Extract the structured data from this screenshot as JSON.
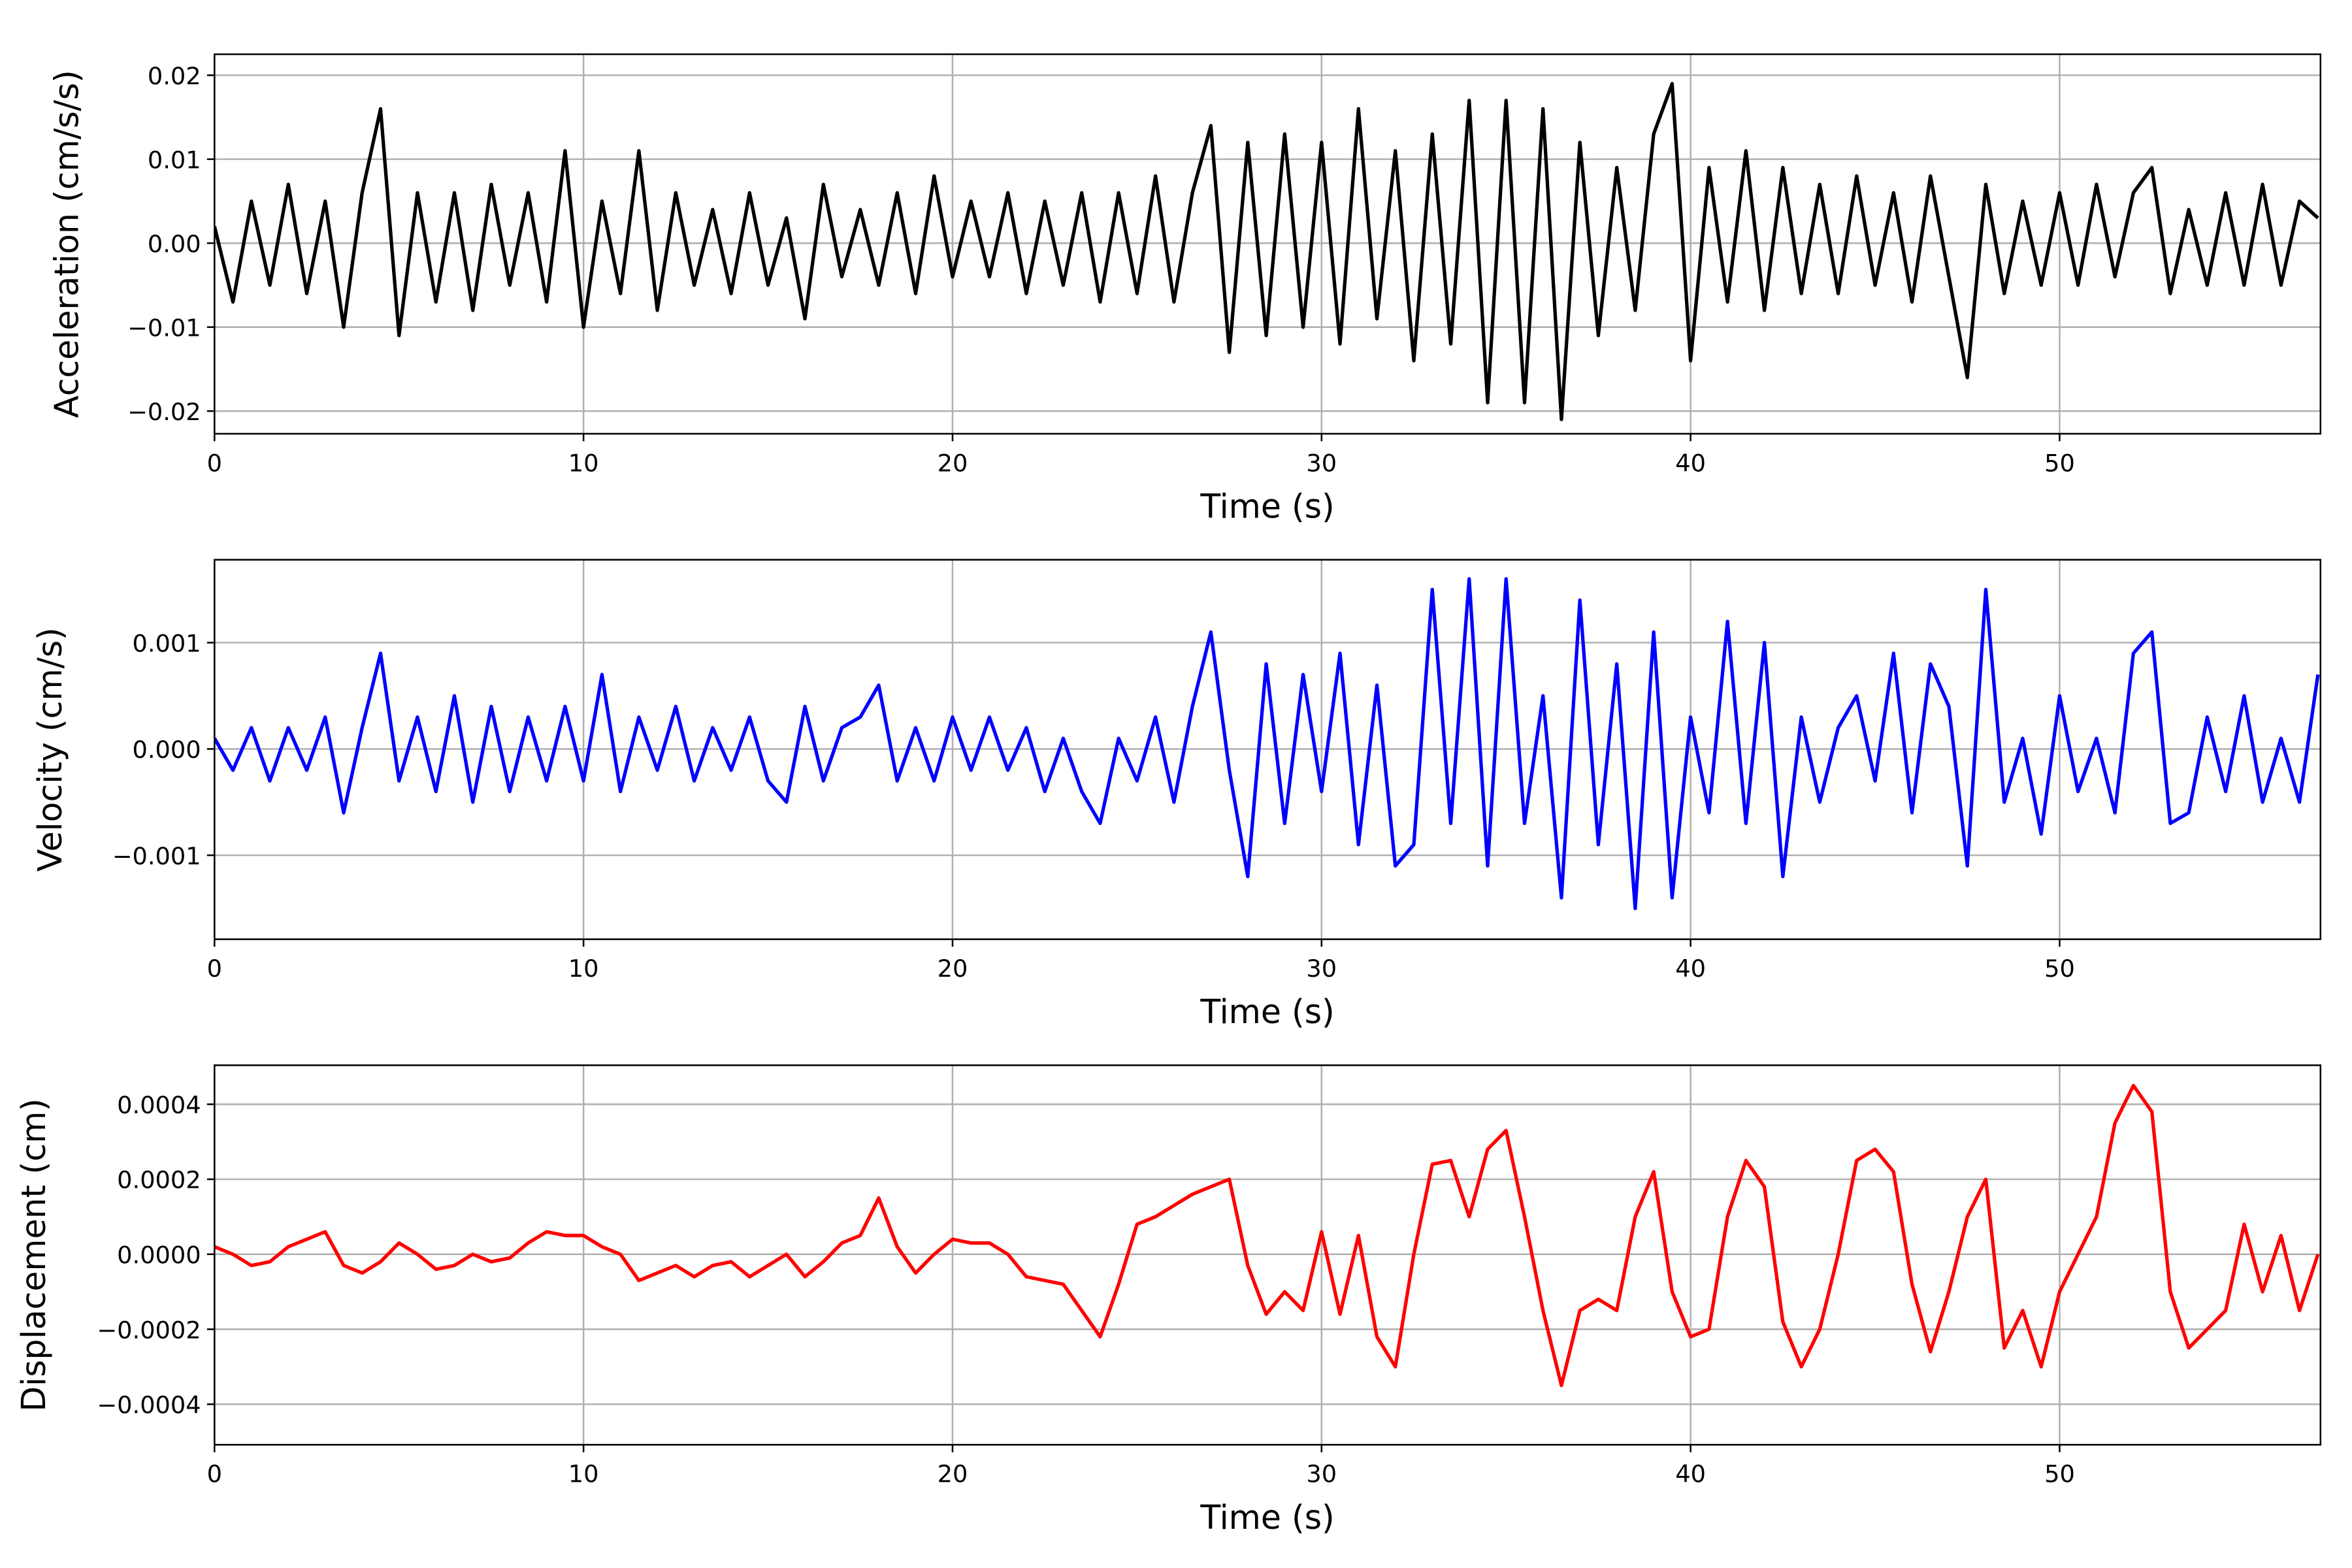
{
  "chart_data": [
    {
      "type": "line",
      "xlabel": "Time (s)",
      "ylabel": "Acceleration (cm/s/s)",
      "grid": true,
      "xlim": [
        0,
        57.07
      ],
      "xticks": [
        0,
        10,
        20,
        30,
        40,
        50
      ],
      "ylim": [
        -0.0227,
        0.0225
      ],
      "yticks": [
        {
          "value": -0.02,
          "label": "−0.02"
        },
        {
          "value": -0.01,
          "label": "−0.01"
        },
        {
          "value": 0,
          "label": "0.00"
        },
        {
          "value": 0.01,
          "label": "0.01"
        },
        {
          "value": 0.02,
          "label": "0.02"
        }
      ],
      "x": [
        0,
        0.5,
        1,
        1.5,
        2,
        2.5,
        3,
        3.5,
        4,
        4.5,
        5,
        5.5,
        6,
        6.5,
        7,
        7.5,
        8,
        8.5,
        9,
        9.5,
        10,
        10.5,
        11,
        11.5,
        12,
        12.5,
        13,
        13.5,
        14,
        14.5,
        15,
        15.5,
        16,
        16.5,
        17,
        17.5,
        18,
        18.5,
        19,
        19.5,
        20,
        20.5,
        21,
        21.5,
        22,
        22.5,
        23,
        23.5,
        24,
        24.5,
        25,
        25.5,
        26,
        26.5,
        27,
        27.5,
        28,
        28.5,
        29,
        29.5,
        30,
        30.5,
        31,
        31.5,
        32,
        32.5,
        33,
        33.5,
        34,
        34.5,
        35,
        35.5,
        36,
        36.5,
        37,
        37.5,
        38,
        38.5,
        39,
        39.5,
        40,
        40.5,
        41,
        41.5,
        42,
        42.5,
        43,
        43.5,
        44,
        44.5,
        45,
        45.5,
        46,
        46.5,
        47,
        47.5,
        48,
        48.5,
        49,
        49.5,
        50,
        50.5,
        51,
        51.5,
        52,
        52.5,
        53,
        53.5,
        54,
        54.5,
        55,
        55.5,
        56,
        56.5,
        57
      ],
      "series": [
        {
          "color": "#000000",
          "values": [
            0.002,
            -0.007,
            0.005,
            -0.005,
            0.007,
            -0.006,
            0.005,
            -0.01,
            0.006,
            0.016,
            -0.011,
            0.006,
            -0.007,
            0.006,
            -0.008,
            0.007,
            -0.005,
            0.006,
            -0.007,
            0.011,
            -0.01,
            0.005,
            -0.006,
            0.011,
            -0.008,
            0.006,
            -0.005,
            0.004,
            -0.006,
            0.006,
            -0.005,
            0.003,
            -0.009,
            0.007,
            -0.004,
            0.004,
            -0.005,
            0.006,
            -0.006,
            0.008,
            -0.004,
            0.005,
            -0.004,
            0.006,
            -0.006,
            0.005,
            -0.005,
            0.006,
            -0.007,
            0.006,
            -0.006,
            0.008,
            -0.007,
            0.006,
            0.014,
            -0.013,
            0.012,
            -0.011,
            0.013,
            -0.01,
            0.012,
            -0.012,
            0.016,
            -0.009,
            0.011,
            -0.014,
            0.013,
            -0.012,
            0.017,
            -0.019,
            0.017,
            -0.019,
            0.016,
            -0.021,
            0.012,
            -0.011,
            0.009,
            -0.008,
            0.013,
            0.019,
            -0.014,
            0.009,
            -0.007,
            0.011,
            -0.008,
            0.009,
            -0.006,
            0.007,
            -0.006,
            0.008,
            -0.005,
            0.006,
            -0.007,
            0.008,
            -0.004,
            -0.016,
            0.007,
            -0.006,
            0.005,
            -0.005,
            0.006,
            -0.005,
            0.007,
            -0.004,
            0.006,
            0.009,
            -0.006,
            0.004,
            -0.005,
            0.006,
            -0.005,
            0.007,
            -0.005,
            0.005,
            0.003
          ]
        }
      ]
    },
    {
      "type": "line",
      "xlabel": "Time (s)",
      "ylabel": "Velocity (cm/s)",
      "grid": true,
      "xlim": [
        0,
        57.07
      ],
      "xticks": [
        0,
        10,
        20,
        30,
        40,
        50
      ],
      "ylim": [
        -0.00179,
        0.00178
      ],
      "yticks": [
        {
          "value": -0.001,
          "label": "−0.001"
        },
        {
          "value": 0,
          "label": "0.000"
        },
        {
          "value": 0.001,
          "label": "0.001"
        }
      ],
      "x": [
        0,
        0.5,
        1,
        1.5,
        2,
        2.5,
        3,
        3.5,
        4,
        4.5,
        5,
        5.5,
        6,
        6.5,
        7,
        7.5,
        8,
        8.5,
        9,
        9.5,
        10,
        10.5,
        11,
        11.5,
        12,
        12.5,
        13,
        13.5,
        14,
        14.5,
        15,
        15.5,
        16,
        16.5,
        17,
        17.5,
        18,
        18.5,
        19,
        19.5,
        20,
        20.5,
        21,
        21.5,
        22,
        22.5,
        23,
        23.5,
        24,
        24.5,
        25,
        25.5,
        26,
        26.5,
        27,
        27.5,
        28,
        28.5,
        29,
        29.5,
        30,
        30.5,
        31,
        31.5,
        32,
        32.5,
        33,
        33.5,
        34,
        34.5,
        35,
        35.5,
        36,
        36.5,
        37,
        37.5,
        38,
        38.5,
        39,
        39.5,
        40,
        40.5,
        41,
        41.5,
        42,
        42.5,
        43,
        43.5,
        44,
        44.5,
        45,
        45.5,
        46,
        46.5,
        47,
        47.5,
        48,
        48.5,
        49,
        49.5,
        50,
        50.5,
        51,
        51.5,
        52,
        52.5,
        53,
        53.5,
        54,
        54.5,
        55,
        55.5,
        56,
        56.5,
        57
      ],
      "series": [
        {
          "color": "#0000ff",
          "values": [
            0.0001,
            -0.0002,
            0.0002,
            -0.0003,
            0.0002,
            -0.0002,
            0.0003,
            -0.0006,
            0.0002,
            0.0009,
            -0.0003,
            0.0003,
            -0.0004,
            0.0005,
            -0.0005,
            0.0004,
            -0.0004,
            0.0003,
            -0.0003,
            0.0004,
            -0.0003,
            0.0007,
            -0.0004,
            0.0003,
            -0.0002,
            0.0004,
            -0.0003,
            0.0002,
            -0.0002,
            0.0003,
            -0.0003,
            -0.0005,
            0.0004,
            -0.0003,
            0.0002,
            0.0003,
            0.0006,
            -0.0003,
            0.0002,
            -0.0003,
            0.0003,
            -0.0002,
            0.0003,
            -0.0002,
            0.0002,
            -0.0004,
            0.0001,
            -0.0004,
            -0.0007,
            0.0001,
            -0.0003,
            0.0003,
            -0.0005,
            0.0004,
            0.0011,
            -0.0002,
            -0.0012,
            0.0008,
            -0.0007,
            0.0007,
            -0.0004,
            0.0009,
            -0.0009,
            0.0006,
            -0.0011,
            -0.0009,
            0.0015,
            -0.0007,
            0.0016,
            -0.0011,
            0.0016,
            -0.0007,
            0.0005,
            -0.0014,
            0.0014,
            -0.0009,
            0.0008,
            -0.0015,
            0.0011,
            -0.0014,
            0.0003,
            -0.0006,
            0.0012,
            -0.0007,
            0.001,
            -0.0012,
            0.0003,
            -0.0005,
            0.0002,
            0.0005,
            -0.0003,
            0.0009,
            -0.0006,
            0.0008,
            0.0004,
            -0.0011,
            0.0015,
            -0.0005,
            0.0001,
            -0.0008,
            0.0005,
            -0.0004,
            0.0001,
            -0.0006,
            0.0009,
            0.0011,
            -0.0007,
            -0.0006,
            0.0003,
            -0.0004,
            0.0005,
            -0.0005,
            0.0001,
            -0.0005,
            0.0007
          ]
        }
      ]
    },
    {
      "type": "line",
      "xlabel": "Time (s)",
      "ylabel": "Displacement (cm)",
      "grid": true,
      "xlim": [
        0,
        57.07
      ],
      "xticks": [
        0,
        10,
        20,
        30,
        40,
        50
      ],
      "ylim": [
        -0.000508,
        0.000504
      ],
      "yticks": [
        {
          "value": -0.0004,
          "label": "−0.0004"
        },
        {
          "value": -0.0002,
          "label": "−0.0002"
        },
        {
          "value": 0,
          "label": "0.0000"
        },
        {
          "value": 0.0002,
          "label": "0.0002"
        },
        {
          "value": 0.0004,
          "label": "0.0004"
        }
      ],
      "x": [
        0,
        0.5,
        1,
        1.5,
        2,
        2.5,
        3,
        3.5,
        4,
        4.5,
        5,
        5.5,
        6,
        6.5,
        7,
        7.5,
        8,
        8.5,
        9,
        9.5,
        10,
        10.5,
        11,
        11.5,
        12,
        12.5,
        13,
        13.5,
        14,
        14.5,
        15,
        15.5,
        16,
        16.5,
        17,
        17.5,
        18,
        18.5,
        19,
        19.5,
        20,
        20.5,
        21,
        21.5,
        22,
        22.5,
        23,
        23.5,
        24,
        24.5,
        25,
        25.5,
        26,
        26.5,
        27,
        27.5,
        28,
        28.5,
        29,
        29.5,
        30,
        30.5,
        31,
        31.5,
        32,
        32.5,
        33,
        33.5,
        34,
        34.5,
        35,
        35.5,
        36,
        36.5,
        37,
        37.5,
        38,
        38.5,
        39,
        39.5,
        40,
        40.5,
        41,
        41.5,
        42,
        42.5,
        43,
        43.5,
        44,
        44.5,
        45,
        45.5,
        46,
        46.5,
        47,
        47.5,
        48,
        48.5,
        49,
        49.5,
        50,
        50.5,
        51,
        51.5,
        52,
        52.5,
        53,
        53.5,
        54,
        54.5,
        55,
        55.5,
        56,
        56.5,
        57
      ],
      "series": [
        {
          "color": "#ff0000",
          "values": [
            2e-05,
            0,
            -3e-05,
            -2e-05,
            2e-05,
            4e-05,
            6e-05,
            -3e-05,
            -5e-05,
            -2e-05,
            3e-05,
            0,
            -4e-05,
            -3e-05,
            0,
            -2e-05,
            -1e-05,
            3e-05,
            6e-05,
            5e-05,
            5e-05,
            2e-05,
            0,
            -7e-05,
            -5e-05,
            -3e-05,
            -6e-05,
            -3e-05,
            -2e-05,
            -6e-05,
            -3e-05,
            0,
            -6e-05,
            -2e-05,
            3e-05,
            5e-05,
            0.00015,
            2e-05,
            -5e-05,
            0,
            4e-05,
            3e-05,
            3e-05,
            0,
            -6e-05,
            -7e-05,
            -8e-05,
            -0.00015,
            -0.00022,
            -8e-05,
            8e-05,
            0.0001,
            0.00013,
            0.00016,
            0.00018,
            0.0002,
            -3e-05,
            -0.00016,
            -0.0001,
            -0.00015,
            6e-05,
            -0.00016,
            5e-05,
            -0.00022,
            -0.0003,
            0,
            0.00024,
            0.00025,
            0.0001,
            0.00028,
            0.00033,
            0.0001,
            -0.00015,
            -0.00035,
            -0.00015,
            -0.00012,
            -0.00015,
            0.0001,
            0.00022,
            -0.0001,
            -0.00022,
            -0.0002,
            0.0001,
            0.00025,
            0.00018,
            -0.00018,
            -0.0003,
            -0.0002,
            0,
            0.00025,
            0.00028,
            0.00022,
            -8e-05,
            -0.00026,
            -0.0001,
            0.0001,
            0.0002,
            -0.00025,
            -0.00015,
            -0.0003,
            -0.0001,
            0,
            0.0001,
            0.00035,
            0.00045,
            0.00038,
            -0.0001,
            -0.00025,
            -0.0002,
            -0.00015,
            8e-05,
            -0.0001,
            5e-05,
            -0.00015,
            0
          ]
        }
      ]
    }
  ]
}
